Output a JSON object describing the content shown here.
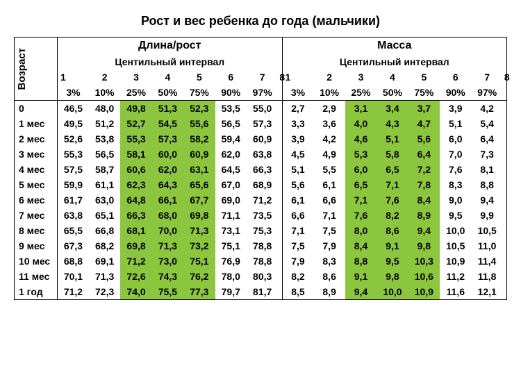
{
  "title": "Рост и вес ребенка до года (мальчики)",
  "age_label": "Возраст",
  "length_label": "Длина/рост",
  "mass_label": "Масса",
  "centile_label": "Центильный интервал",
  "col_numbers": [
    "1",
    "2",
    "3",
    "4",
    "5",
    "6",
    "7",
    "8"
  ],
  "percent_labels": [
    "3%",
    "10%",
    "25%",
    "50%",
    "75%",
    "90%",
    "97%"
  ],
  "rows": [
    {
      "age": "0",
      "len": [
        "46,5",
        "48,0",
        "49,8",
        "51,3",
        "52,3",
        "53,5",
        "55,0"
      ],
      "mass": [
        "2,7",
        "2,9",
        "3,1",
        "3,4",
        "3,7",
        "3,9",
        "4,2"
      ]
    },
    {
      "age": "1 мес",
      "len": [
        "49,5",
        "51,2",
        "52,7",
        "54,5",
        "55,6",
        "56,5",
        "57,3"
      ],
      "mass": [
        "3,3",
        "3,6",
        "4,0",
        "4,3",
        "4,7",
        "5,1",
        "5,4"
      ]
    },
    {
      "age": "2 мес",
      "len": [
        "52,6",
        "53,8",
        "55,3",
        "57,3",
        "58,2",
        "59,4",
        "60,9"
      ],
      "mass": [
        "3,9",
        "4,2",
        "4,6",
        "5,1",
        "5,6",
        "6,0",
        "6,4"
      ]
    },
    {
      "age": "3 мес",
      "len": [
        "55,3",
        "56,5",
        "58,1",
        "60,0",
        "60,9",
        "62,0",
        "63,8"
      ],
      "mass": [
        "4,5",
        "4,9",
        "5,3",
        "5,8",
        "6,4",
        "7,0",
        "7,3"
      ]
    },
    {
      "age": "4 мес",
      "len": [
        "57,5",
        "58,7",
        "60,6",
        "62,0",
        "63,1",
        "64,5",
        "66,3"
      ],
      "mass": [
        "5,1",
        "5,5",
        "6,0",
        "6,5",
        "7,2",
        "7,6",
        "8,1"
      ]
    },
    {
      "age": "5 мес",
      "len": [
        "59,9",
        "61,1",
        "62,3",
        "64,3",
        "65,6",
        "67,0",
        "68,9"
      ],
      "mass": [
        "5,6",
        "6,1",
        "6,5",
        "7,1",
        "7,8",
        "8,3",
        "8,8"
      ]
    },
    {
      "age": "6 мес",
      "len": [
        "61,7",
        "63,0",
        "64,8",
        "66,1",
        "67,7",
        "69,0",
        "71,2"
      ],
      "mass": [
        "6,1",
        "6,6",
        "7,1",
        "7,6",
        "8,4",
        "9,0",
        "9,4"
      ]
    },
    {
      "age": "7 мес",
      "len": [
        "63,8",
        "65,1",
        "66,3",
        "68,0",
        "69,8",
        "71,1",
        "73,5"
      ],
      "mass": [
        "6,6",
        "7,1",
        "7,6",
        "8,2",
        "8,9",
        "9,5",
        "9,9"
      ]
    },
    {
      "age": "8 мес",
      "len": [
        "65,5",
        "66,8",
        "68,1",
        "70,0",
        "71,3",
        "73,1",
        "75,3"
      ],
      "mass": [
        "7,1",
        "7,5",
        "8,0",
        "8,6",
        "9,4",
        "10,0",
        "10,5"
      ]
    },
    {
      "age": "9 мес",
      "len": [
        "67,3",
        "68,2",
        "69,8",
        "71,3",
        "73,2",
        "75,1",
        "78,8"
      ],
      "mass": [
        "7,5",
        "7,9",
        "8,4",
        "9,1",
        "9,8",
        "10,5",
        "11,0"
      ]
    },
    {
      "age": "10 мес",
      "len": [
        "68,8",
        "69,1",
        "71,2",
        "73,0",
        "75,1",
        "76,9",
        "78,8"
      ],
      "mass": [
        "7,9",
        "8,3",
        "8,8",
        "9,5",
        "10,3",
        "10,9",
        "11,4"
      ]
    },
    {
      "age": "11 мес",
      "len": [
        "70,1",
        "71,3",
        "72,6",
        "74,3",
        "76,2",
        "78,0",
        "80,3"
      ],
      "mass": [
        "8,2",
        "8,6",
        "9,1",
        "9,8",
        "10,6",
        "11,2",
        "11,8"
      ]
    },
    {
      "age": "1 год",
      "len": [
        "71,2",
        "72,3",
        "74,0",
        "75,5",
        "77,3",
        "79,7",
        "81,7"
      ],
      "mass": [
        "8,5",
        "8,9",
        "9,4",
        "10,0",
        "10,9",
        "11,6",
        "12,1"
      ]
    }
  ],
  "highlight_cols": [
    2,
    3,
    4
  ],
  "colors": {
    "highlight": "#8cc63f",
    "border": "#000000",
    "bg": "#ffffff"
  }
}
